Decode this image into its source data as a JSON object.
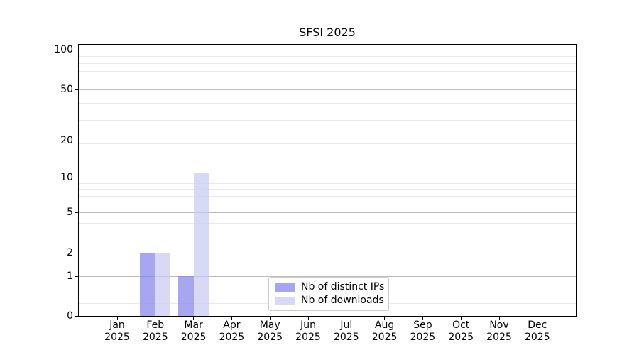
{
  "title": "SFSI 2025",
  "chart_data": {
    "type": "bar",
    "title": "SFSI 2025",
    "xlabel": "",
    "ylabel": "",
    "categories": [
      "Jan 2025",
      "Feb 2025",
      "Mar 2025",
      "Apr 2025",
      "May 2025",
      "Jun 2025",
      "Jul 2025",
      "Aug 2025",
      "Sep 2025",
      "Oct 2025",
      "Nov 2025",
      "Dec 2025"
    ],
    "x_labels": [
      {
        "month": "Jan",
        "year": "2025"
      },
      {
        "month": "Feb",
        "year": "2025"
      },
      {
        "month": "Mar",
        "year": "2025"
      },
      {
        "month": "Apr",
        "year": "2025"
      },
      {
        "month": "May",
        "year": "2025"
      },
      {
        "month": "Jun",
        "year": "2025"
      },
      {
        "month": "Jul",
        "year": "2025"
      },
      {
        "month": "Aug",
        "year": "2025"
      },
      {
        "month": "Sep",
        "year": "2025"
      },
      {
        "month": "Oct",
        "year": "2025"
      },
      {
        "month": "Nov",
        "year": "2025"
      },
      {
        "month": "Dec",
        "year": "2025"
      }
    ],
    "series": [
      {
        "name": "Nb of distinct IPs",
        "color": "#a6a6f0",
        "fill": "rgba(132,132,235,0.72)",
        "values": [
          0,
          2,
          1,
          0,
          0,
          0,
          0,
          0,
          0,
          0,
          0,
          0
        ]
      },
      {
        "name": "Nb of downloads",
        "color": "#d8d8f7",
        "fill": "rgba(201,201,244,0.72)",
        "values": [
          0,
          2,
          11,
          0,
          0,
          0,
          0,
          0,
          0,
          0,
          0,
          0
        ]
      }
    ],
    "yscale": "log10(1+x)",
    "ylim": [
      0,
      110
    ],
    "y_ticks": [
      {
        "label": "0",
        "value": 0
      },
      {
        "label": "1",
        "value": 1
      },
      {
        "label": "2",
        "value": 2
      },
      {
        "label": "5",
        "value": 5
      },
      {
        "label": "10",
        "value": 10
      },
      {
        "label": "20",
        "value": 20
      },
      {
        "label": "50",
        "value": 50
      },
      {
        "label": "100",
        "value": 100
      }
    ],
    "y_minor_gridlines": [
      0.25,
      0.5,
      3,
      4,
      6,
      7,
      8,
      9,
      19,
      29,
      39,
      59,
      69,
      79,
      89
    ],
    "grid": "both",
    "legend_position": "lower center"
  },
  "colors": {
    "background": "#ffffff",
    "spine": "#000000",
    "text": "#000000",
    "grid_major": "#bcbcbc",
    "grid_minor": "#e9e9e9",
    "legend_border": "#cccccc"
  }
}
